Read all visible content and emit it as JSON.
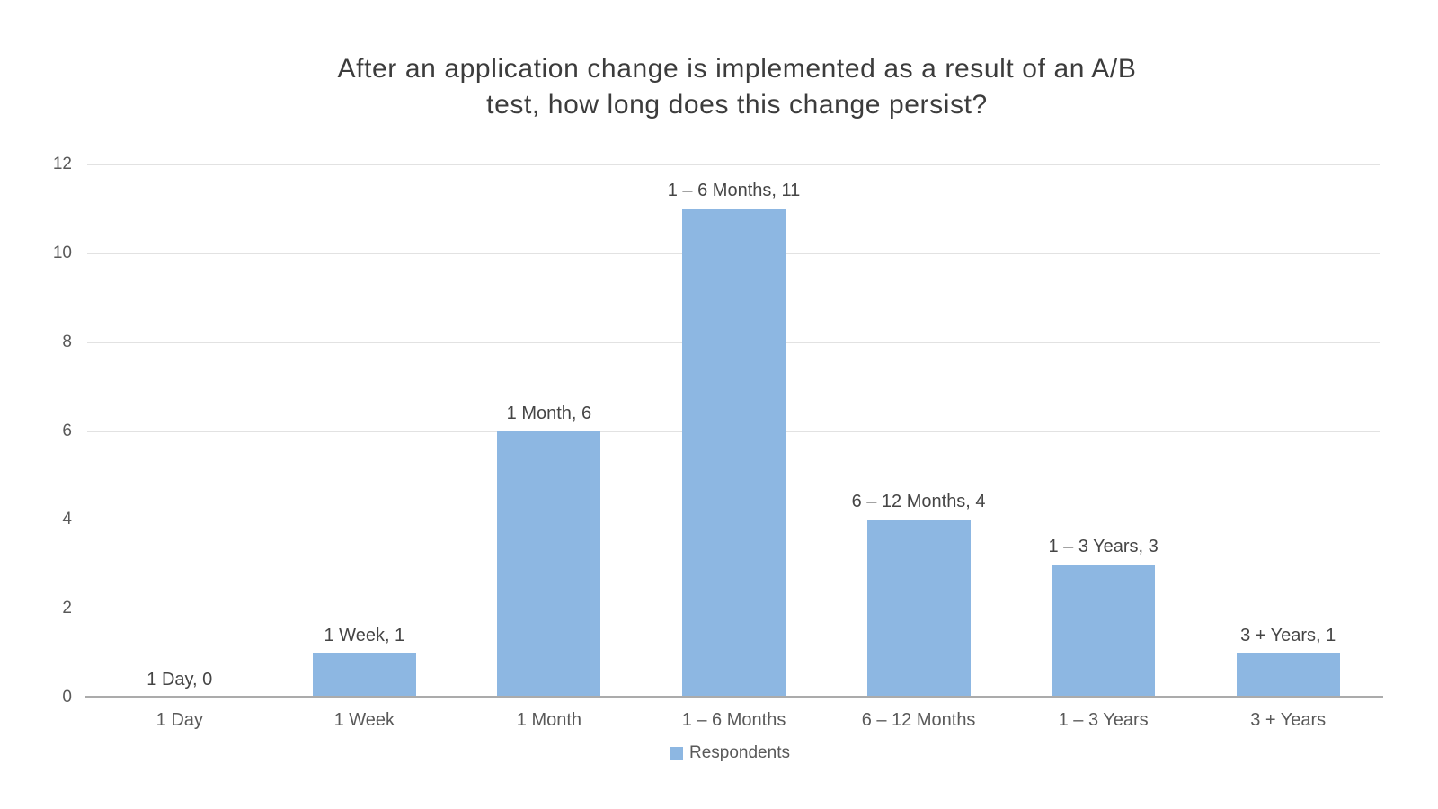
{
  "page": {
    "background": "#FFFFFF"
  },
  "chart_data": {
    "type": "bar",
    "title": "After an application change is implemented as a result of an A/B test, how long does this change persist?",
    "title_lines": [
      "After an application change is implemented as a result of an A/B",
      "test, how long does this change persist?"
    ],
    "categories": [
      "1 Day",
      "1 Week",
      "1 Month",
      "1 – 6 Months",
      "6 – 12 Months",
      "1 – 3 Years",
      "3 + Years"
    ],
    "series": [
      {
        "name": "Respondents",
        "values": [
          0,
          1,
          6,
          11,
          4,
          3,
          1
        ]
      }
    ],
    "data_labels": [
      "1 Day, 0",
      "1 Week, 1",
      "1 Month, 6",
      "1 – 6 Months, 11",
      "6 – 12 Months, 4",
      "1 – 3 Years, 3",
      "3 + Years, 1"
    ],
    "xlabel": "",
    "ylabel": "",
    "ylim": [
      0,
      12
    ],
    "yticks": [
      0,
      2,
      4,
      6,
      8,
      10,
      12
    ],
    "grid": "horizontal",
    "legend_position": "bottom-center",
    "legend_label": "Respondents",
    "colors": {
      "bar": "#8DB7E2",
      "gridline": "#E2E2E2",
      "axis_line": "#ABABAB",
      "title_text": "#3C3C3C",
      "tick_text": "#595959",
      "data_label_text": "#454545"
    }
  }
}
